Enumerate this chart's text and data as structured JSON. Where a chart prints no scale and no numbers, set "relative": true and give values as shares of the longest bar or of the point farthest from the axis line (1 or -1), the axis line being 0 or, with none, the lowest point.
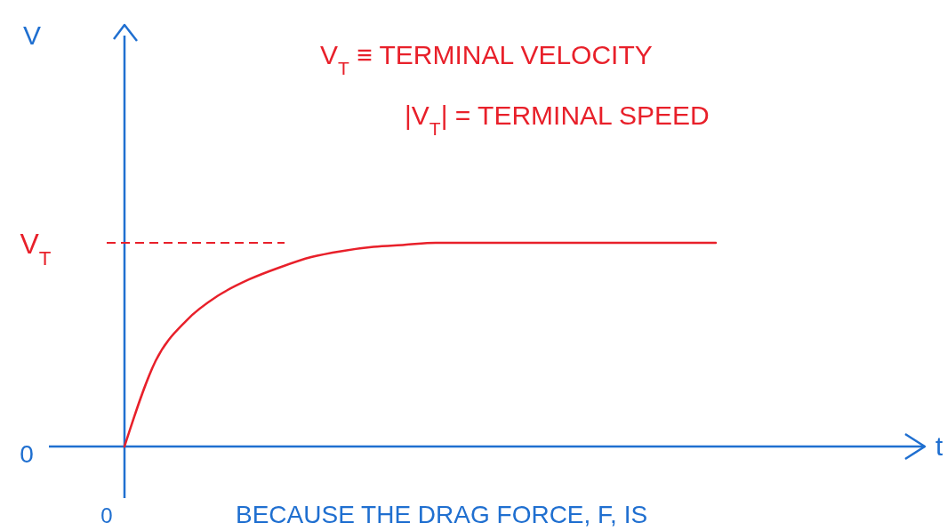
{
  "chart_data": {
    "type": "line",
    "relative": true,
    "categories": [
      null,
      null,
      null,
      null,
      null,
      null,
      null,
      null,
      null,
      null,
      null,
      null,
      null,
      null,
      null,
      null,
      null,
      null,
      null,
      null
    ],
    "series": [
      {
        "color": "#e8202a",
        "values": [
          0,
          0.42,
          0.62,
          0.74,
          0.82,
          0.88,
          0.93,
          0.96,
          0.98,
          0.99,
          1,
          1,
          1,
          1,
          1,
          1,
          1,
          1,
          1,
          1
        ]
      }
    ],
    "ref_lines": [
      {
        "axis": "y",
        "value": 1,
        "label": "V$_{T}$",
        "color": "#e8202a",
        "line_style": "dashed"
      }
    ],
    "annotations": [
      "V$_{T}$ ≡ TERMINAL VELOCITY",
      "|V$_{T}$| = TERMINAL SPEED",
      "0",
      "0",
      "BECAUSE THE DRAG FORCE, F, IS",
      "V",
      "t"
    ],
    "marker": "none",
    "line_style": "solid"
  }
}
